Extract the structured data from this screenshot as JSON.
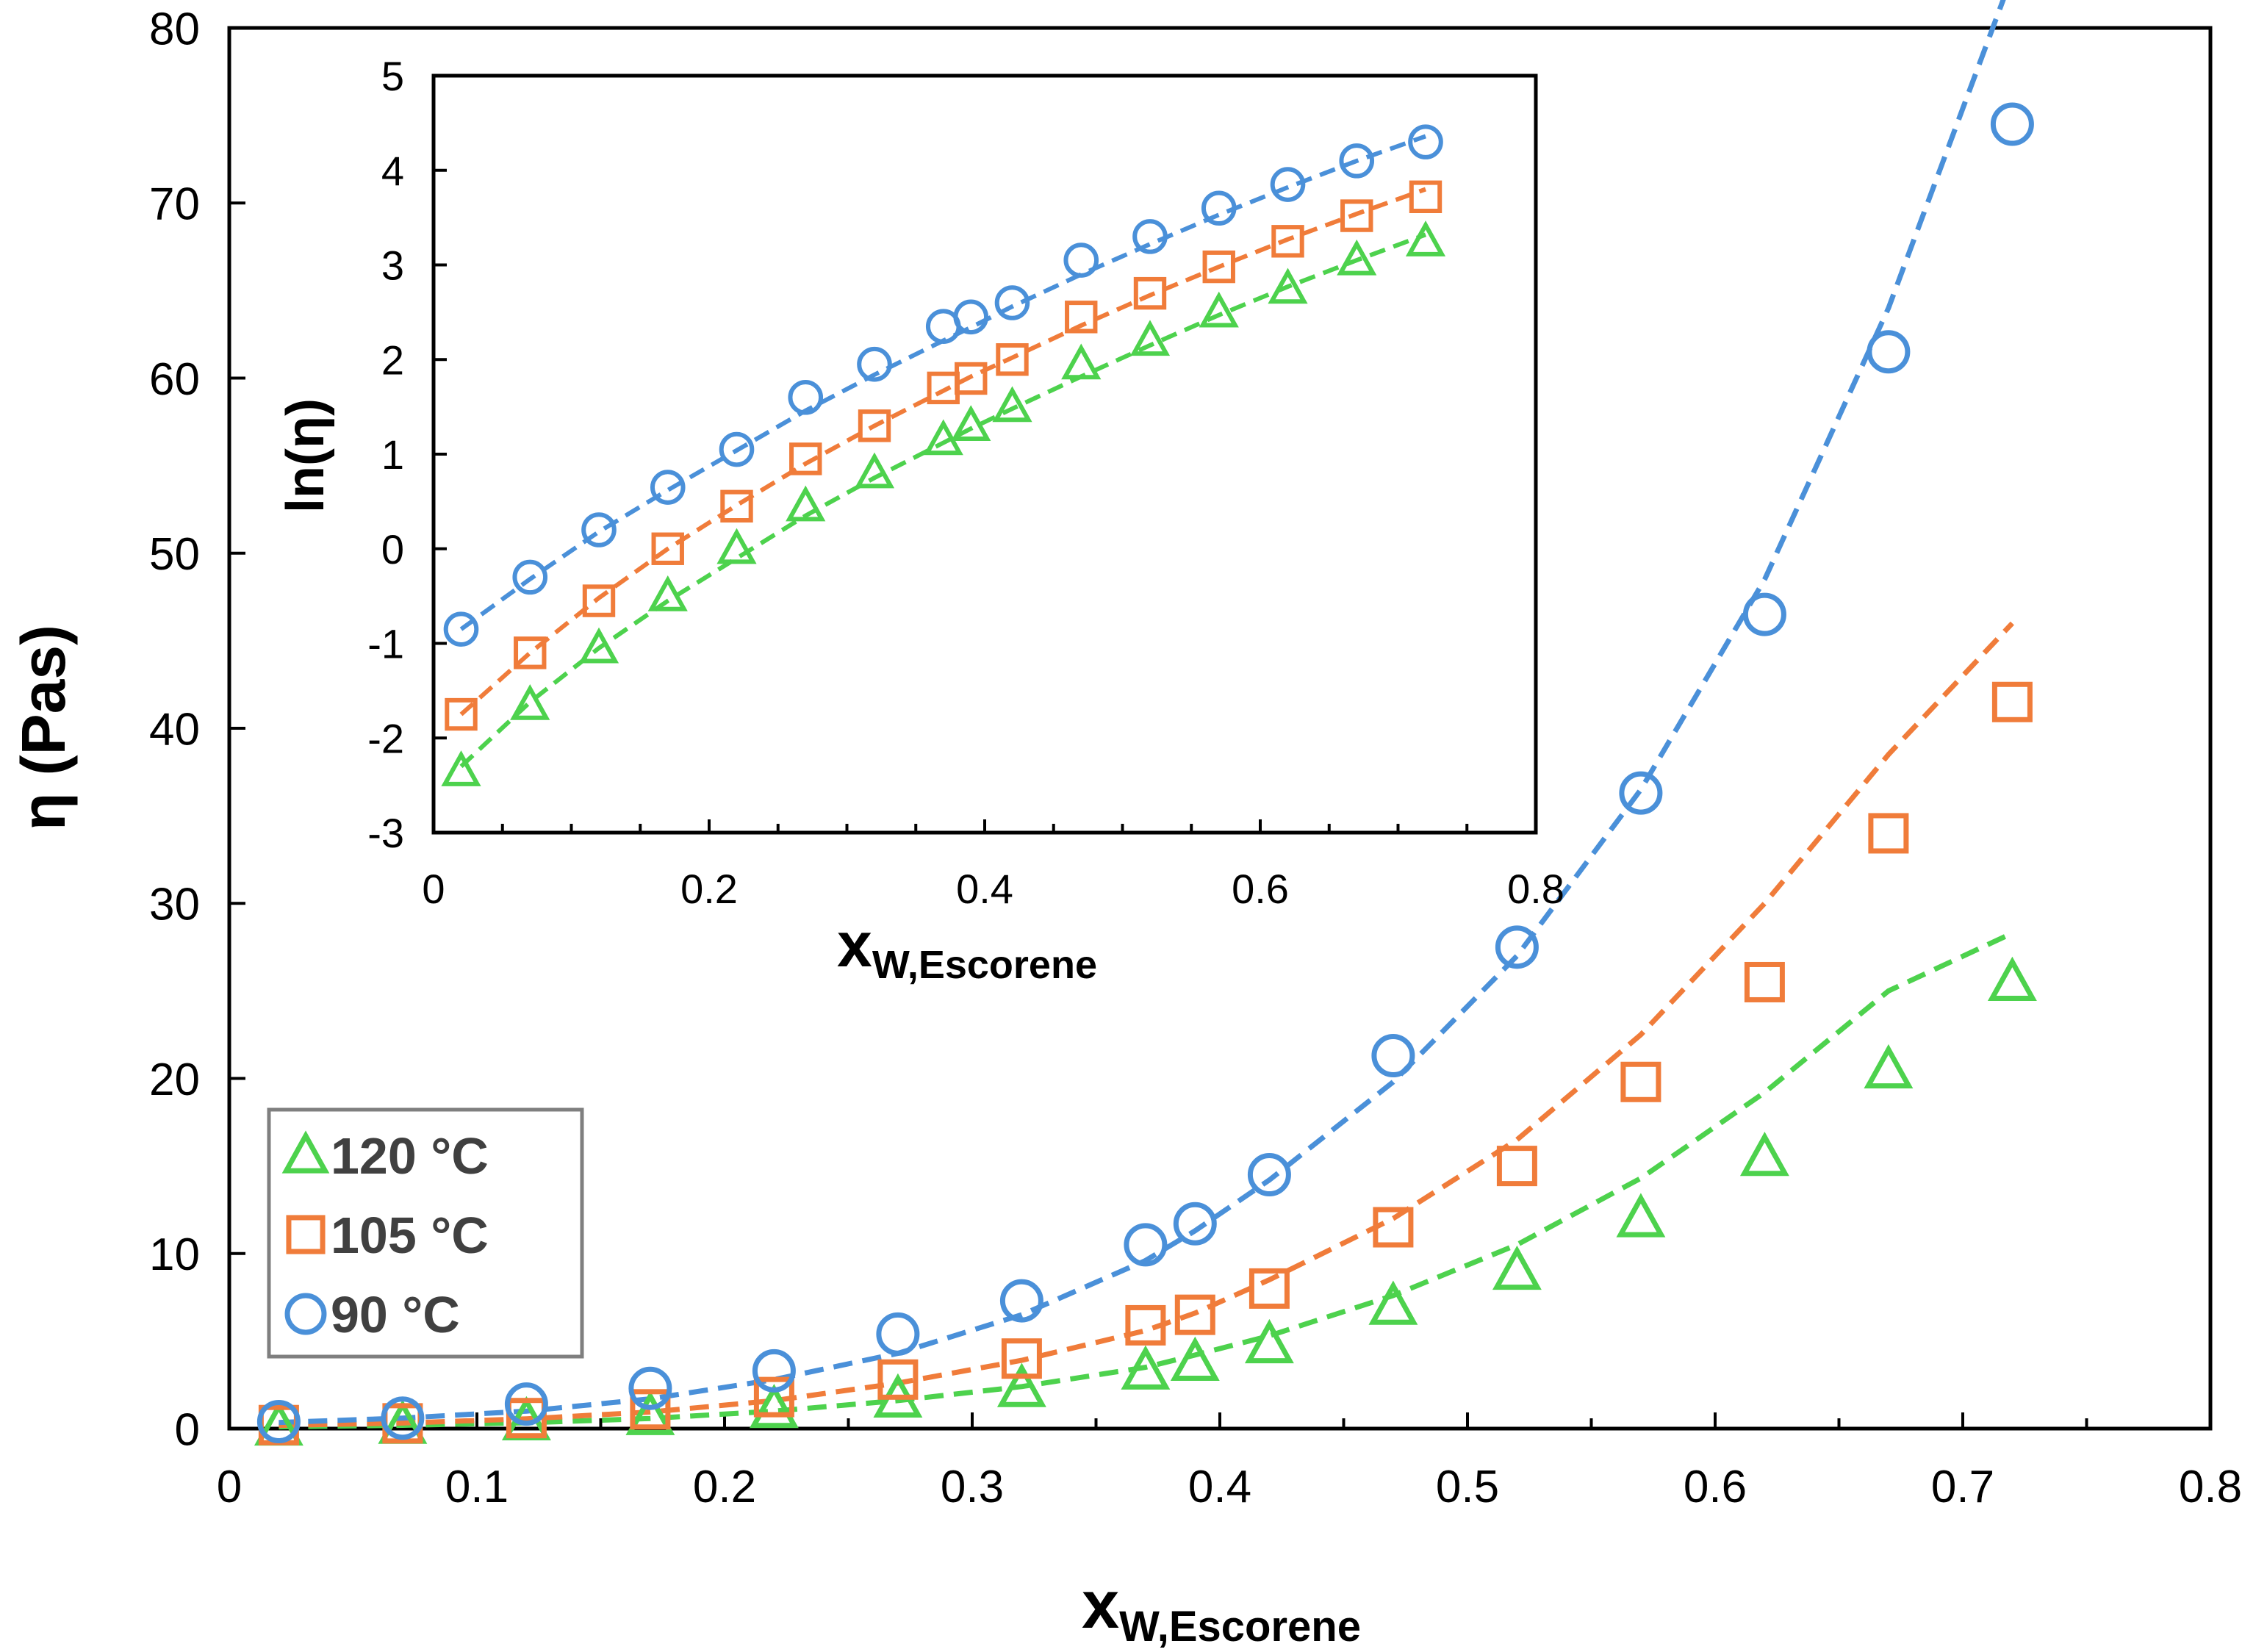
{
  "chart_data": [
    {
      "id": "main",
      "type": "scatter",
      "title": "",
      "xlabel_main": "x",
      "xlabel_sub": "W,Escorene",
      "ylabel": "η (Pas)",
      "xlim": [
        0,
        0.8
      ],
      "ylim": [
        0,
        80
      ],
      "xticks": [
        "0",
        "0.1",
        "0.2",
        "0.3",
        "0.4",
        "0.5",
        "0.6",
        "0.7",
        "0.8"
      ],
      "yticks": [
        "0",
        "10",
        "20",
        "30",
        "40",
        "50",
        "60",
        "70",
        "80"
      ],
      "grid": false,
      "legend_position": "bottom-left",
      "x": [
        0.02,
        0.07,
        0.12,
        0.17,
        0.22,
        0.27,
        0.32,
        0.37,
        0.39,
        0.42,
        0.47,
        0.52,
        0.57,
        0.62,
        0.67,
        0.72
      ],
      "series": [
        {
          "name": "120 °C",
          "marker": "triangle",
          "color": "#4DD24D",
          "values": [
            0.1,
            0.2,
            0.4,
            0.7,
            1.1,
            1.7,
            2.3,
            3.3,
            3.8,
            4.8,
            7.0,
            9.0,
            12.0,
            15.5,
            20.5,
            25.5
          ],
          "fit": [
            0.1,
            0.19,
            0.33,
            0.58,
            1.0,
            1.6,
            2.4,
            3.5,
            4.2,
            5.3,
            7.6,
            10.5,
            14.3,
            19.2,
            25.0,
            28.3
          ]
        },
        {
          "name": "105 °C",
          "marker": "square",
          "color": "#F07C3A",
          "values": [
            0.2,
            0.3,
            0.6,
            1.1,
            1.8,
            2.8,
            4.0,
            5.9,
            6.5,
            8.0,
            11.5,
            15.0,
            19.8,
            25.5,
            34.0,
            41.5
          ],
          "fit": [
            0.18,
            0.32,
            0.56,
            0.95,
            1.6,
            2.6,
            3.9,
            5.6,
            6.6,
            8.5,
            12.0,
            16.5,
            22.5,
            30.0,
            38.5,
            46.0
          ]
        },
        {
          "name": "90 °C",
          "marker": "circle",
          "color": "#4A90D9",
          "values": [
            0.4,
            0.6,
            1.4,
            2.3,
            3.3,
            5.4,
            7.3,
            10.5,
            11.7,
            14.5,
            21.3,
            27.5,
            36.3,
            46.5,
            61.5,
            74.5
          ],
          "fit": [
            0.35,
            0.6,
            1.0,
            1.7,
            2.8,
            4.3,
            6.5,
            9.6,
            11.3,
            14.2,
            19.8,
            27.0,
            36.5,
            48.5,
            64.0,
            83.0
          ]
        }
      ]
    },
    {
      "id": "inset",
      "type": "scatter",
      "title": "",
      "xlabel_main": "x",
      "xlabel_sub": "W,Escorene",
      "ylabel": "ln(η)",
      "xlim": [
        0,
        0.8
      ],
      "ylim": [
        -3,
        5
      ],
      "xticks": [
        "0",
        "0.2",
        "0.4",
        "0.6",
        "0.8"
      ],
      "yticks": [
        "-3",
        "-2",
        "-1",
        "0",
        "1",
        "2",
        "3",
        "4",
        "5"
      ],
      "grid": false,
      "x": [
        0.02,
        0.07,
        0.12,
        0.17,
        0.22,
        0.27,
        0.32,
        0.37,
        0.39,
        0.42,
        0.47,
        0.52,
        0.57,
        0.62,
        0.67,
        0.72
      ],
      "series": [
        {
          "name": "120 °C",
          "marker": "triangle",
          "color": "#4DD24D",
          "values": [
            -2.35,
            -1.65,
            -1.05,
            -0.5,
            0.0,
            0.45,
            0.8,
            1.15,
            1.3,
            1.5,
            1.95,
            2.2,
            2.5,
            2.75,
            3.05,
            3.25
          ],
          "fit": [
            -2.3,
            -1.62,
            -1.05,
            -0.55,
            -0.1,
            0.35,
            0.75,
            1.12,
            1.27,
            1.48,
            1.82,
            2.15,
            2.47,
            2.77,
            3.05,
            3.32
          ]
        },
        {
          "name": "105 °C",
          "marker": "square",
          "color": "#F07C3A",
          "values": [
            -1.75,
            -1.1,
            -0.55,
            0.0,
            0.45,
            0.95,
            1.3,
            1.7,
            1.8,
            2.0,
            2.45,
            2.7,
            2.98,
            3.25,
            3.52,
            3.72
          ],
          "fit": [
            -1.75,
            -1.1,
            -0.52,
            0.0,
            0.46,
            0.9,
            1.3,
            1.67,
            1.82,
            2.02,
            2.36,
            2.68,
            2.98,
            3.27,
            3.54,
            3.8
          ]
        },
        {
          "name": "90 °C",
          "marker": "circle",
          "color": "#4A90D9",
          "values": [
            -0.85,
            -0.3,
            0.2,
            0.65,
            1.05,
            1.6,
            1.95,
            2.35,
            2.45,
            2.6,
            3.05,
            3.3,
            3.6,
            3.85,
            4.1,
            4.3
          ],
          "fit": [
            -0.85,
            -0.32,
            0.18,
            0.62,
            1.04,
            1.46,
            1.84,
            2.2,
            2.34,
            2.56,
            2.9,
            3.22,
            3.53,
            3.82,
            4.1,
            4.36
          ]
        }
      ]
    }
  ]
}
